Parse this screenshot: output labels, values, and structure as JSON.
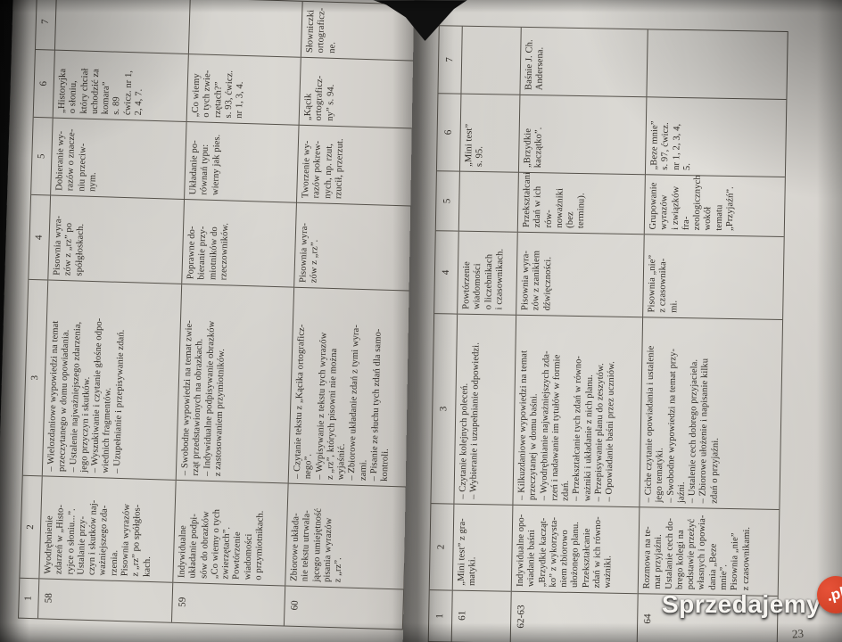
{
  "watermark": {
    "text": "Sprzedajemy",
    "tld": ".pl"
  },
  "page_number": "23",
  "pages": [
    {
      "side": "left",
      "headers": [
        "1",
        "2",
        "3",
        "4",
        "5",
        "6",
        "7"
      ],
      "rows": [
        {
          "cells": [
            "58",
            "Wyodrębnienie\nzdarzeń w „Histo-\nryjce o słoniu...”.\nUstalanie przy-\nczyn i skutków naj-\nważniejszego zda-\nrzenia.\nPisownia wyrazów\nz „rz” po spółgłos-\nkach.",
            "– Wielozdaniowe wypowiedzi na temat\nprzeczytanego w domu opowiadania.\n– Ustalenie najważniejszego zdarzenia,\njego przyczyn i skutków.\n– Wyszukiwanie i czytanie głośne odpo-\nwiednich fragmentów.\n– Uzupełnianie i przepisywanie zdań.",
            "Pisownia wyra-\nzów z „rz” po\nspółgłoskach.",
            "Dobieranie wy-\nrazów o znacze-\nniu przeciw-\nnym.",
            "„Historyjka\no słoniu,\nktóry chciał\nuchodzić za\nkomara”\ns. 89\nćwicz. nr 1,\n2, 4, 7.",
            ""
          ]
        },
        {
          "cells": [
            "59",
            "Indywidualne\nukładanie podpi-\nsów do obrazków\n„Co wiemy o tych\nzwierzętach”.\nPowtórzenie\nwiadomości\no przymiotnikach.",
            "– Swobodne wypowiedzi na temat zwie-\nrząt przedstawionych na obrazkach.\n– Indywidualne podpisywanie obrazków\nz zastosowaniem przymiotników.",
            "Poprawne do-\nbieranie przy-\nmiotników do\nrzeczowników.",
            "Układanie po-\nrównań typu:\nwierny jak pies.",
            "„Co wiemy\no tych zwie-\nrzętach?”\ns. 93, ćwicz.\nnr 1, 3, 4.",
            ""
          ]
        },
        {
          "cells": [
            "60",
            "Zbiorowe układa-\nnie tekstu utrwala-\njącego umiejętność\npisania wyrazów\nz „rz”.",
            "– Czytanie tekstu z „Kącika ortograficz-\nnego”.\n– Wypisywanie z tekstu tych wyrazów\nz „rz”, których pisowni nie można\nwyjaśnić.\n– Zbiorowe układanie zdań z tymi wyra-\nzami.\n– Pisanie ze słuchu tych zdań dla samo-\nkontroli.",
            "Pisownia wyra-\nzów z „rz”.",
            "Tworzenie wy-\nrazów pokrew-\nnych, np. rzut,\nrzucił, przerzut.",
            "„Kącik\nortograficz-\nny” s. 94.",
            "Słowniczki\nortograficz-\nne."
          ]
        }
      ]
    },
    {
      "side": "right",
      "headers": [
        "1",
        "2",
        "3",
        "4",
        "5",
        "6",
        "7"
      ],
      "rows": [
        {
          "cells": [
            "61",
            "„Mini test” z gra-\nmatyki.",
            "– Czytanie kolejnych poleceń.\n– Wybieranie i uzupełnianie odpowiedzi.",
            "Powtórzenie\nwiadomości\no liczebnikach\ni czasownikach.",
            "",
            "„Mini test”\ns. 95.",
            ""
          ]
        },
        {
          "cells": [
            "62-63",
            "Indywidualne opo-\nwiadanie baśni\n„Brzydkie kacząt-\nko” z wykorzysta-\nniem zbiorowo\nułożonego planu.\nPrzekształcanie\nzdań w ich równo-\nważniki.",
            "– Kilkuzdaniowe wypowiedzi na temat\nprzeczytanej w domu baśni.\n– Wyodrębnianie najważniejszych zda-\nrzeń i nadawanie im tytułów w formie\nzdań.\n– Przekształcanie tych zdań w równo-\nważniki i układanie z nich planu.\n– Przepisywanie planu do zeszytów.\n– Opowiadanie baśni przez uczniów.",
            "Pisownia wyra-\nzów z zanikiem\ndźwięczności.",
            "Przekształcanie\nzdań w ich rów-\nnoważniki (bez\nterminu).",
            "„Brzydkie\nkaczątko”.",
            "Baśnie J. Ch.\nAndersena."
          ]
        },
        {
          "cells": [
            "64",
            "Rozmowa na te-\nmat przyjaźni.\nUstalanie cech do-\nbrego kolegi na\npodstawie przeżyć\nwłasnych i opowia-\ndania „Beze\nmnie”.\nPisownia „nie”\nz czasownikami.",
            "– Ciche czytanie opowiadania i ustalenie\njego tematyki.\n– Swobodne wypowiedzi na temat przy-\njaźni.\n– Ustalenie cech dobrego przyjaciela.\n– Zbiorowe ułożenie i napisanie kilku\nzdań o przyjaźni.",
            "Pisownia „nie”\nz czasownika-\nmi.",
            "Grupowanie\nwyrazów\ni związków fra-\nzeologicznych\nwokół tematu\n„Przyjaźń”.",
            "„Beze mnie”\ns. 97, ćwicz.\nnr 1, 2, 3, 4,\n5.",
            ""
          ]
        }
      ]
    }
  ]
}
